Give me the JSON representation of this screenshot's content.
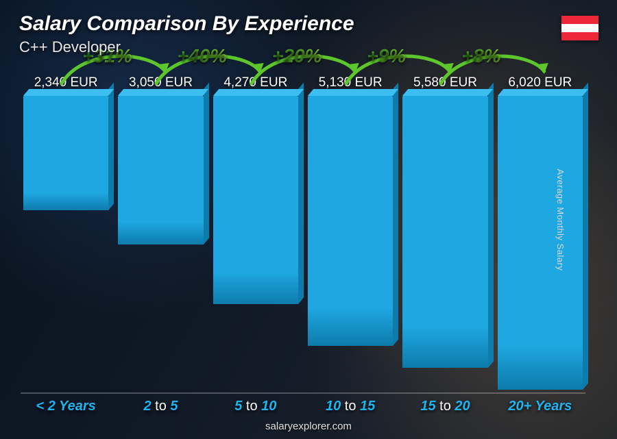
{
  "header": {
    "title": "Salary Comparison By Experience",
    "title_fontsize": 30,
    "subtitle": "C++ Developer",
    "subtitle_fontsize": 22
  },
  "flag": {
    "name": "austria-flag",
    "stripes": [
      "#ed2939",
      "#ffffff",
      "#ed2939"
    ]
  },
  "yaxis_label": "Average Monthly Salary",
  "footer": "salaryexplorer.com",
  "chart": {
    "type": "bar",
    "background_color": "transparent",
    "max_value": 6500,
    "value_suffix": " EUR",
    "value_fontsize": 19,
    "bar_color": "#1ea7e0",
    "bar_top_color": "#3cbef0",
    "bar_side_color": "#0d7bab",
    "category_color_accent": "#1fb4ef",
    "category_color_dim": "#ffffff",
    "category_fontsize": 20,
    "pct_color_start": "#3fa92a",
    "pct_color_end": "#8fe63a",
    "pct_fontsize": 28,
    "arrow_color": "#5cc62c",
    "bars": [
      {
        "category_prefix": "< 2",
        "category_suffix": " Years",
        "value": 2340,
        "value_label": "2,340 EUR"
      },
      {
        "category_prefix": "2",
        "category_mid": " to ",
        "category_suffix": "5",
        "value": 3050,
        "value_label": "3,050 EUR",
        "pct": "+31%"
      },
      {
        "category_prefix": "5",
        "category_mid": " to ",
        "category_suffix": "10",
        "value": 4270,
        "value_label": "4,270 EUR",
        "pct": "+40%"
      },
      {
        "category_prefix": "10",
        "category_mid": " to ",
        "category_suffix": "15",
        "value": 5130,
        "value_label": "5,130 EUR",
        "pct": "+20%"
      },
      {
        "category_prefix": "15",
        "category_mid": " to ",
        "category_suffix": "20",
        "value": 5580,
        "value_label": "5,580 EUR",
        "pct": "+9%"
      },
      {
        "category_prefix": "20+",
        "category_suffix": " Years",
        "value": 6020,
        "value_label": "6,020 EUR",
        "pct": "+8%"
      }
    ]
  }
}
